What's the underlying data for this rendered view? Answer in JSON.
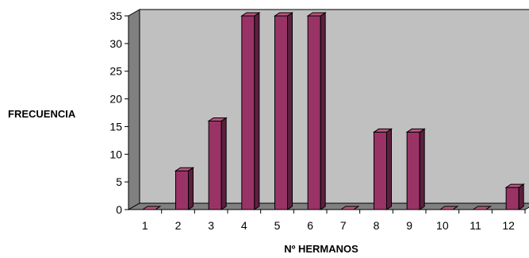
{
  "chart_data": {
    "type": "bar",
    "title": "",
    "xlabel": "Nº HERMANOS",
    "ylabel": "FRECUENCIA",
    "categories": [
      "1",
      "2",
      "3",
      "4",
      "5",
      "6",
      "7",
      "8",
      "9",
      "10",
      "11",
      "12"
    ],
    "values": [
      0,
      7,
      16,
      35,
      35,
      35,
      0,
      14,
      14,
      0,
      0,
      4
    ],
    "ylim": [
      0,
      35
    ],
    "yticks": [
      "0",
      "5",
      "10",
      "15",
      "20",
      "25",
      "30",
      "35"
    ],
    "grid": false,
    "legend": "none",
    "colors": {
      "bar_front": "#993366",
      "bar_side": "#5c1f3d",
      "bar_top": "#b8557f",
      "back_wall": "#c0c0c0",
      "floor": "#808080"
    }
  }
}
